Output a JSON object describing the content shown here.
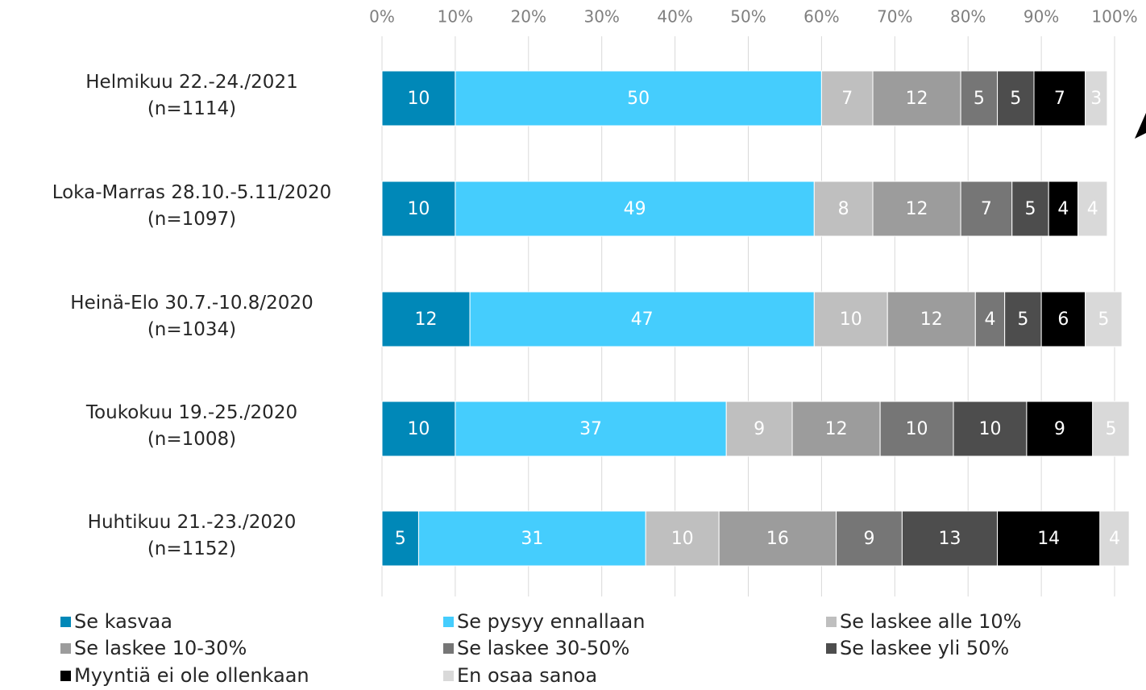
{
  "chart_data": {
    "type": "stacked_barh",
    "categories": [
      "Helmikuu 22.-24./2021\n(n=1114)",
      "Loka-Marras 28.10.-5.11/2020\n(n=1097)",
      "Heinä-Elo 30.7.-10.8/2020\n(n=1034)",
      "Toukokuu 19.-25./2020\n(n=1008)",
      "Huhtikuu 21.-23./2020\n(n=1152)"
    ],
    "series": [
      {
        "name": "Se kasvaa",
        "color": "#0088b8",
        "values": [
          10,
          10,
          12,
          10,
          5
        ]
      },
      {
        "name": "Se pysyy ennallaan",
        "color": "#45cdfd",
        "values": [
          50,
          49,
          47,
          37,
          31
        ]
      },
      {
        "name": "Se laskee alle 10%",
        "color": "#bfbfbf",
        "values": [
          7,
          8,
          10,
          9,
          10
        ]
      },
      {
        "name": "Se laskee 10-30%",
        "color": "#9c9c9c",
        "values": [
          12,
          12,
          12,
          12,
          16
        ]
      },
      {
        "name": "Se laskee 30-50%",
        "color": "#767676",
        "values": [
          5,
          7,
          4,
          10,
          9
        ]
      },
      {
        "name": "Se laskee yli 50%",
        "color": "#4d4d4d",
        "values": [
          5,
          5,
          5,
          10,
          13
        ]
      },
      {
        "name": "Myyntiä ei ole ollenkaan",
        "color": "#000000",
        "values": [
          7,
          4,
          6,
          9,
          14
        ]
      },
      {
        "name": "En osaa sanoa",
        "color": "#d9d9d9",
        "values": [
          3,
          4,
          5,
          5,
          4
        ]
      }
    ],
    "xlim": [
      0,
      100
    ],
    "xticks": [
      {
        "value": 0,
        "label": "0%"
      },
      {
        "value": 10,
        "label": "10%"
      },
      {
        "value": 20,
        "label": "20%"
      },
      {
        "value": 30,
        "label": "30%"
      },
      {
        "value": 40,
        "label": "40%"
      },
      {
        "value": 50,
        "label": "50%"
      },
      {
        "value": 60,
        "label": "60%"
      },
      {
        "value": 70,
        "label": "70%"
      },
      {
        "value": 80,
        "label": "80%"
      },
      {
        "value": 90,
        "label": "90%"
      },
      {
        "value": 100,
        "label": "100%"
      }
    ],
    "grid": true,
    "legend": "bottom"
  }
}
